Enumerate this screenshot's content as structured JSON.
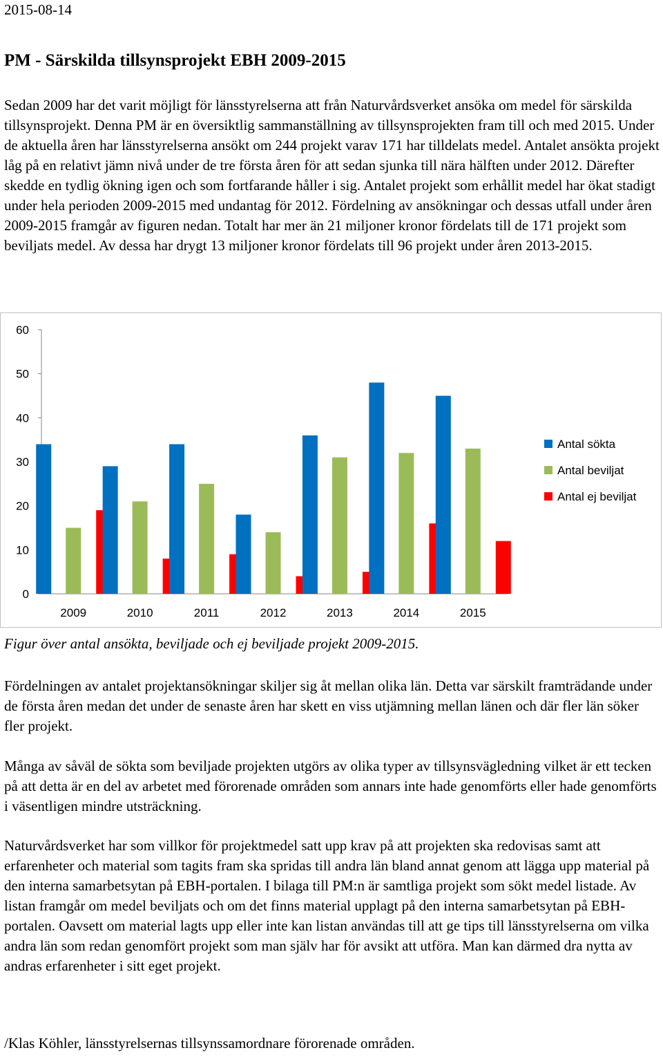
{
  "date": "2015-08-14",
  "title": "PM - Särskilda tillsynsprojekt EBH 2009-2015",
  "paragraphs": {
    "p1": "Sedan 2009 har det varit möjligt för länsstyrelserna att från Naturvårdsverket ansöka om medel för särskilda tillsynsprojekt. Denna PM är en översiktlig sammanställning av tillsynsprojekten fram till och med 2015. Under de aktuella åren har länsstyrelserna ansökt om 244 projekt varav 171 har tilldelats medel. Antalet ansökta projekt låg på en relativt jämn nivå under de tre första åren för att sedan sjunka till nära hälften under 2012. Därefter skedde en tydlig ökning igen och som fortfarande håller i sig. Antalet projekt som erhållit medel har ökat stadigt under hela perioden 2009-2015 med undantag för 2012. Fördelning av ansökningar och dessas utfall under åren 2009-2015 framgår av figuren nedan. Totalt har mer än 21 miljoner kronor fördelats till de 171 projekt som beviljats medel. Av dessa har drygt 13 miljoner kronor fördelats till 96 projekt under åren 2013-2015.",
    "p2": "Fördelningen av antalet projektansökningar skiljer sig åt mellan olika län. Detta var särskilt framträdande under de första åren medan det under de senaste åren har skett en viss utjämning mellan länen och där fler län söker fler projekt.",
    "p3": "Många av såväl de sökta som beviljade projekten utgörs av olika typer av tillsynsvägledning vilket är ett tecken på att detta är en del av arbetet med förorenade områden som annars inte hade genomförts eller hade genomförts i väsentligen mindre utsträckning.",
    "p4": "Naturvårdsverket har som villkor för projektmedel satt upp krav på att projekten ska redovisas samt att erfarenheter och material som tagits fram ska spridas till andra län bland annat genom att lägga upp material på den interna samarbetsytan på EBH-portalen. I bilaga till PM:n är samtliga projekt som sökt medel listade. Av listan framgår om medel beviljats och om det finns material upplagt på den interna samarbetsytan på EBH-portalen. Oavsett om material lagts upp eller inte kan listan användas till att ge tips till länsstyrelserna om vilka andra län som redan genomfört projekt som man själv har för avsikt att utföra. Man kan därmed dra nytta av andras erfarenheter i sitt eget projekt."
  },
  "caption": "Figur över antal ansökta, beviljade och ej beviljade projekt 2009-2015.",
  "signature": "/Klas Köhler, länsstyrelsernas tillsynssamordnare förorenade områden.",
  "chart_data": {
    "type": "bar",
    "categories": [
      "2009",
      "2010",
      "2011",
      "2012",
      "2013",
      "2014",
      "2015"
    ],
    "series": [
      {
        "name": "Antal sökta",
        "color": "#0070C0",
        "values": [
          34,
          29,
          34,
          18,
          36,
          48,
          45
        ]
      },
      {
        "name": "Antal beviljat",
        "color": "#9BBB59",
        "values": [
          15,
          21,
          25,
          14,
          31,
          32,
          33
        ]
      },
      {
        "name": "Antal ej beviljat",
        "color": "#FF0000",
        "values": [
          19,
          8,
          9,
          4,
          5,
          16,
          12
        ]
      }
    ],
    "yticks": [
      "0",
      "10",
      "20",
      "30",
      "40",
      "50",
      "60"
    ],
    "ylim": [
      0,
      60
    ],
    "grid": false,
    "legend": "right"
  }
}
